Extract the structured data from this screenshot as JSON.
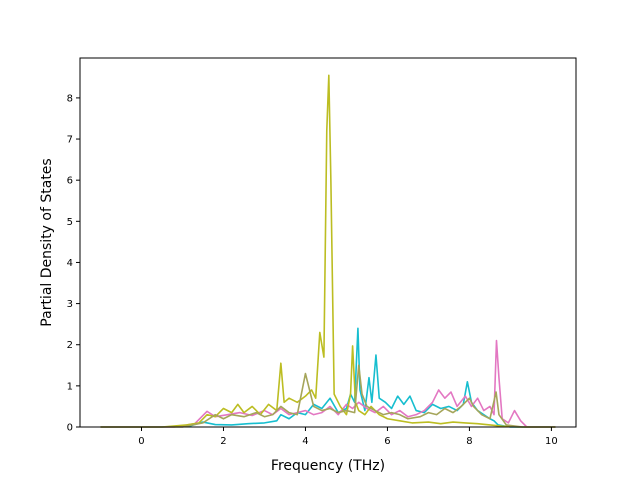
{
  "chart_data": {
    "type": "line",
    "title": "",
    "xlabel": "Frequency (THz)",
    "ylabel": "Partial Density of States",
    "xlim": [
      -1.5,
      10.6
    ],
    "ylim": [
      0,
      8.97
    ],
    "xticks": [
      0,
      2,
      4,
      6,
      8,
      10
    ],
    "yticks": [
      0,
      1,
      2,
      3,
      4,
      5,
      6,
      7,
      8
    ],
    "grid": false,
    "legend": "none",
    "series": [
      {
        "color": "#17becf",
        "points": [
          [
            -1.0,
            0
          ],
          [
            0.5,
            0
          ],
          [
            1.2,
            0.03
          ],
          [
            1.5,
            0.12
          ],
          [
            1.8,
            0.06
          ],
          [
            2.2,
            0.05
          ],
          [
            2.6,
            0.08
          ],
          [
            3.0,
            0.1
          ],
          [
            3.3,
            0.15
          ],
          [
            3.4,
            0.3
          ],
          [
            3.6,
            0.2
          ],
          [
            3.8,
            0.35
          ],
          [
            4.0,
            0.3
          ],
          [
            4.2,
            0.55
          ],
          [
            4.4,
            0.45
          ],
          [
            4.6,
            0.7
          ],
          [
            4.8,
            0.35
          ],
          [
            5.0,
            0.45
          ],
          [
            5.1,
            0.8
          ],
          [
            5.2,
            0.6
          ],
          [
            5.28,
            2.4
          ],
          [
            5.33,
            0.9
          ],
          [
            5.45,
            0.4
          ],
          [
            5.55,
            1.2
          ],
          [
            5.62,
            0.6
          ],
          [
            5.72,
            1.75
          ],
          [
            5.8,
            0.7
          ],
          [
            5.95,
            0.6
          ],
          [
            6.1,
            0.45
          ],
          [
            6.25,
            0.75
          ],
          [
            6.4,
            0.55
          ],
          [
            6.55,
            0.75
          ],
          [
            6.7,
            0.4
          ],
          [
            6.9,
            0.35
          ],
          [
            7.1,
            0.55
          ],
          [
            7.3,
            0.45
          ],
          [
            7.5,
            0.5
          ],
          [
            7.7,
            0.4
          ],
          [
            7.85,
            0.55
          ],
          [
            7.95,
            1.1
          ],
          [
            8.05,
            0.6
          ],
          [
            8.2,
            0.4
          ],
          [
            8.35,
            0.3
          ],
          [
            8.5,
            0.2
          ],
          [
            8.6,
            0.15
          ],
          [
            8.7,
            0.05
          ],
          [
            9.0,
            0
          ],
          [
            10.1,
            0
          ]
        ]
      },
      {
        "color": "#e377c2",
        "points": [
          [
            -1.0,
            0
          ],
          [
            0.8,
            0
          ],
          [
            1.3,
            0.08
          ],
          [
            1.6,
            0.38
          ],
          [
            1.8,
            0.25
          ],
          [
            2.1,
            0.3
          ],
          [
            2.4,
            0.35
          ],
          [
            2.7,
            0.28
          ],
          [
            3.0,
            0.4
          ],
          [
            3.2,
            0.3
          ],
          [
            3.4,
            0.45
          ],
          [
            3.6,
            0.3
          ],
          [
            3.8,
            0.35
          ],
          [
            4.0,
            0.4
          ],
          [
            4.2,
            0.3
          ],
          [
            4.4,
            0.35
          ],
          [
            4.6,
            0.5
          ],
          [
            4.8,
            0.3
          ],
          [
            5.0,
            0.55
          ],
          [
            5.15,
            0.45
          ],
          [
            5.3,
            0.6
          ],
          [
            5.5,
            0.45
          ],
          [
            5.7,
            0.35
          ],
          [
            5.9,
            0.5
          ],
          [
            6.1,
            0.3
          ],
          [
            6.3,
            0.4
          ],
          [
            6.5,
            0.25
          ],
          [
            6.7,
            0.3
          ],
          [
            6.9,
            0.4
          ],
          [
            7.1,
            0.6
          ],
          [
            7.25,
            0.9
          ],
          [
            7.4,
            0.7
          ],
          [
            7.55,
            0.85
          ],
          [
            7.7,
            0.5
          ],
          [
            7.9,
            0.75
          ],
          [
            8.05,
            0.5
          ],
          [
            8.2,
            0.7
          ],
          [
            8.35,
            0.4
          ],
          [
            8.5,
            0.5
          ],
          [
            8.6,
            0.3
          ],
          [
            8.66,
            2.1
          ],
          [
            8.72,
            1.2
          ],
          [
            8.8,
            0.2
          ],
          [
            8.95,
            0.1
          ],
          [
            9.1,
            0.4
          ],
          [
            9.25,
            0.15
          ],
          [
            9.4,
            0
          ],
          [
            10.1,
            0
          ]
        ]
      },
      {
        "color": "#bcbd22",
        "points": [
          [
            -1.0,
            0
          ],
          [
            0.5,
            0
          ],
          [
            1.1,
            0.05
          ],
          [
            1.4,
            0.1
          ],
          [
            1.6,
            0.3
          ],
          [
            1.8,
            0.25
          ],
          [
            2.0,
            0.45
          ],
          [
            2.2,
            0.35
          ],
          [
            2.35,
            0.55
          ],
          [
            2.5,
            0.35
          ],
          [
            2.7,
            0.5
          ],
          [
            2.9,
            0.3
          ],
          [
            3.1,
            0.55
          ],
          [
            3.3,
            0.4
          ],
          [
            3.4,
            1.55
          ],
          [
            3.48,
            0.6
          ],
          [
            3.6,
            0.7
          ],
          [
            3.8,
            0.6
          ],
          [
            4.0,
            0.75
          ],
          [
            4.15,
            0.9
          ],
          [
            4.25,
            0.7
          ],
          [
            4.35,
            2.3
          ],
          [
            4.45,
            1.7
          ],
          [
            4.52,
            7.2
          ],
          [
            4.57,
            8.55
          ],
          [
            4.62,
            6.0
          ],
          [
            4.7,
            0.8
          ],
          [
            4.85,
            0.5
          ],
          [
            5.0,
            0.3
          ],
          [
            5.1,
            0.8
          ],
          [
            5.15,
            1.97
          ],
          [
            5.22,
            0.6
          ],
          [
            5.3,
            0.4
          ],
          [
            5.45,
            0.3
          ],
          [
            5.6,
            0.5
          ],
          [
            5.8,
            0.3
          ],
          [
            6.0,
            0.2
          ],
          [
            6.3,
            0.15
          ],
          [
            6.6,
            0.1
          ],
          [
            7.0,
            0.12
          ],
          [
            7.3,
            0.08
          ],
          [
            7.6,
            0.12
          ],
          [
            7.9,
            0.1
          ],
          [
            8.2,
            0.08
          ],
          [
            8.5,
            0.05
          ],
          [
            8.8,
            0.02
          ],
          [
            9.2,
            0
          ],
          [
            10.1,
            0
          ]
        ]
      },
      {
        "color": "#a5a55a",
        "points": [
          [
            -1.0,
            0
          ],
          [
            1.0,
            0
          ],
          [
            1.5,
            0.1
          ],
          [
            1.8,
            0.3
          ],
          [
            2.0,
            0.2
          ],
          [
            2.2,
            0.3
          ],
          [
            2.5,
            0.25
          ],
          [
            2.8,
            0.35
          ],
          [
            3.0,
            0.25
          ],
          [
            3.2,
            0.3
          ],
          [
            3.4,
            0.5
          ],
          [
            3.6,
            0.35
          ],
          [
            3.8,
            0.3
          ],
          [
            4.0,
            1.3
          ],
          [
            4.1,
            0.9
          ],
          [
            4.2,
            0.5
          ],
          [
            4.4,
            0.4
          ],
          [
            4.6,
            0.45
          ],
          [
            4.8,
            0.35
          ],
          [
            5.0,
            0.4
          ],
          [
            5.2,
            0.35
          ],
          [
            5.3,
            1.5
          ],
          [
            5.38,
            0.8
          ],
          [
            5.5,
            0.5
          ],
          [
            5.7,
            0.4
          ],
          [
            5.9,
            0.3
          ],
          [
            6.1,
            0.35
          ],
          [
            6.3,
            0.3
          ],
          [
            6.5,
            0.2
          ],
          [
            6.8,
            0.25
          ],
          [
            7.0,
            0.35
          ],
          [
            7.2,
            0.3
          ],
          [
            7.4,
            0.45
          ],
          [
            7.6,
            0.35
          ],
          [
            7.8,
            0.5
          ],
          [
            8.0,
            0.7
          ],
          [
            8.1,
            0.5
          ],
          [
            8.3,
            0.3
          ],
          [
            8.5,
            0.2
          ],
          [
            8.65,
            0.85
          ],
          [
            8.72,
            0.3
          ],
          [
            8.9,
            0.05
          ],
          [
            9.3,
            0
          ],
          [
            10.1,
            0
          ]
        ]
      }
    ]
  }
}
